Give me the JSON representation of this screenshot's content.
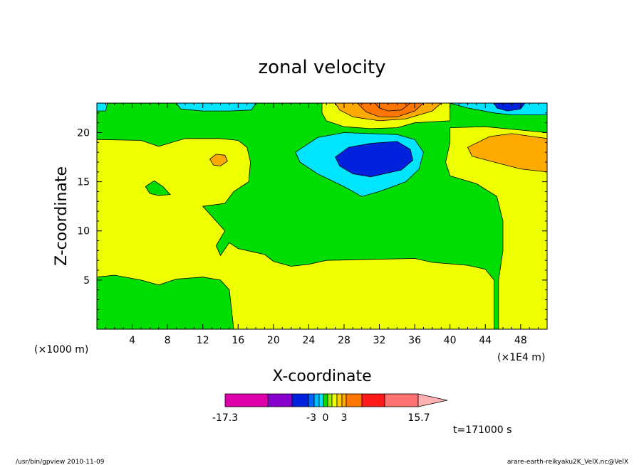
{
  "chart_data": {
    "type": "heatmap",
    "title": "zonal velocity",
    "xlabel": "X-coordinate",
    "ylabel": "Z-coordinate",
    "x_unit": "(×1000 m)",
    "x_multiplier": "(×1E4 m)",
    "xlim": [
      0,
      51
    ],
    "ylim": [
      0,
      23
    ],
    "x_ticks": [
      4,
      8,
      12,
      16,
      20,
      24,
      28,
      32,
      36,
      40,
      44,
      48
    ],
    "y_ticks": [
      5,
      10,
      15,
      20
    ],
    "regions": [
      {
        "level": "green",
        "color": "#00dd00",
        "points": [
          [
            0,
            0
          ],
          [
            51,
            0
          ],
          [
            51,
            23
          ],
          [
            0,
            23
          ]
        ]
      },
      {
        "level": "yellow",
        "color": "#eeff00",
        "points": [
          [
            0,
            19.3
          ],
          [
            5,
            19.2
          ],
          [
            7,
            18.6
          ],
          [
            10,
            19.4
          ],
          [
            14,
            19.4
          ],
          [
            16,
            19.2
          ],
          [
            17,
            18.5
          ],
          [
            17.4,
            17
          ],
          [
            17.2,
            15
          ],
          [
            15.5,
            14
          ],
          [
            14.5,
            12.8
          ],
          [
            12,
            12.5
          ],
          [
            13,
            11.5
          ],
          [
            14.5,
            10
          ],
          [
            13.5,
            8.5
          ],
          [
            14,
            7.5
          ],
          [
            15,
            8.8
          ],
          [
            16,
            8.2
          ],
          [
            18,
            7.8
          ],
          [
            19,
            7.6
          ],
          [
            20,
            6.9
          ],
          [
            22,
            6.4
          ],
          [
            24,
            6.6
          ],
          [
            26,
            7
          ],
          [
            31,
            7.1
          ],
          [
            36,
            7.2
          ],
          [
            38,
            6.8
          ],
          [
            42,
            6.5
          ],
          [
            44,
            6.1
          ],
          [
            45,
            5
          ],
          [
            45,
            0
          ],
          [
            15.5,
            0
          ],
          [
            15,
            4
          ],
          [
            14,
            5
          ],
          [
            12,
            5.3
          ],
          [
            9,
            5.1
          ],
          [
            7,
            4.5
          ],
          [
            5,
            5
          ],
          [
            2,
            5.5
          ],
          [
            0,
            5.3
          ]
        ]
      },
      {
        "level": "yellow",
        "color": "#eeff00",
        "points": [
          [
            40,
            20.5
          ],
          [
            44,
            20.6
          ],
          [
            51,
            20
          ],
          [
            51,
            0
          ],
          [
            45.5,
            0
          ],
          [
            45.5,
            5
          ],
          [
            46,
            8
          ],
          [
            46,
            11
          ],
          [
            45.3,
            13.5
          ],
          [
            43,
            14.8
          ],
          [
            40,
            15.6
          ],
          [
            39.5,
            17
          ],
          [
            40,
            19
          ]
        ]
      },
      {
        "level": "yellow",
        "color": "#eeff00",
        "points": [
          [
            25.5,
            23
          ],
          [
            40,
            23
          ],
          [
            40,
            21.2
          ],
          [
            36,
            21
          ],
          [
            34,
            20.5
          ],
          [
            31,
            20.4
          ],
          [
            28,
            20.6
          ],
          [
            26,
            21.2
          ],
          [
            25.5,
            22
          ]
        ]
      },
      {
        "level": "orange",
        "color": "#ffaa00",
        "points": [
          [
            27,
            23
          ],
          [
            39,
            23
          ],
          [
            38,
            22.2
          ],
          [
            35,
            21.4
          ],
          [
            32,
            21.2
          ],
          [
            29,
            21.6
          ],
          [
            27.5,
            22.3
          ]
        ]
      },
      {
        "level": "orange",
        "color": "#ffaa00",
        "points": [
          [
            42,
            18.5
          ],
          [
            44.5,
            19.6
          ],
          [
            47,
            19.9
          ],
          [
            51,
            19.4
          ],
          [
            51,
            16
          ],
          [
            48,
            16.3
          ],
          [
            45,
            17
          ],
          [
            42.5,
            17.6
          ]
        ]
      },
      {
        "level": "orange",
        "color": "#ffaa00",
        "points": [
          [
            12.8,
            17.3
          ],
          [
            13.5,
            17.8
          ],
          [
            14.5,
            17.7
          ],
          [
            14.8,
            17.1
          ],
          [
            14,
            16.6
          ],
          [
            13.2,
            16.7
          ]
        ]
      },
      {
        "level": "darkorange",
        "color": "#ff7700",
        "points": [
          [
            29.5,
            23
          ],
          [
            37,
            23
          ],
          [
            36,
            22.2
          ],
          [
            34,
            21.6
          ],
          [
            32,
            21.6
          ],
          [
            30.5,
            22.1
          ]
        ]
      },
      {
        "level": "darkorange",
        "color": "#ff7700",
        "points": [
          [
            31.5,
            23
          ],
          [
            35.5,
            23
          ],
          [
            34.5,
            22.3
          ],
          [
            33,
            22.2
          ],
          [
            32,
            22.5
          ]
        ]
      },
      {
        "level": "green",
        "color": "#00dd00",
        "points": [
          [
            5.5,
            14.5
          ],
          [
            6.5,
            15.1
          ],
          [
            7.5,
            14.5
          ],
          [
            8.3,
            13.7
          ],
          [
            7,
            13.6
          ],
          [
            6,
            13.8
          ]
        ]
      },
      {
        "level": "cyan",
        "color": "#00e5ff",
        "points": [
          [
            22.5,
            18
          ],
          [
            25,
            19.5
          ],
          [
            28,
            20
          ],
          [
            31,
            19.9
          ],
          [
            34,
            19.8
          ],
          [
            36,
            19.3
          ],
          [
            37,
            18
          ],
          [
            36.5,
            16.3
          ],
          [
            35,
            15
          ],
          [
            32,
            14
          ],
          [
            30,
            13.5
          ],
          [
            28,
            14.5
          ],
          [
            25,
            15.8
          ],
          [
            23,
            17
          ]
        ]
      },
      {
        "level": "cyan",
        "color": "#00e5ff",
        "points": [
          [
            0,
            23
          ],
          [
            1.2,
            23
          ],
          [
            1,
            22.2
          ],
          [
            0,
            22.2
          ]
        ]
      },
      {
        "level": "cyan",
        "color": "#00e5ff",
        "points": [
          [
            9,
            23
          ],
          [
            18,
            23
          ],
          [
            17.5,
            22.3
          ],
          [
            15,
            22.2
          ],
          [
            12,
            22.2
          ],
          [
            9.5,
            22.4
          ]
        ]
      },
      {
        "level": "cyan",
        "color": "#00e5ff",
        "points": [
          [
            40,
            23
          ],
          [
            51,
            23
          ],
          [
            51,
            21.8
          ],
          [
            47,
            21.8
          ],
          [
            45,
            22
          ],
          [
            42,
            22.5
          ]
        ]
      },
      {
        "level": "blue",
        "color": "#0022dd",
        "points": [
          [
            27,
            17.5
          ],
          [
            28.5,
            18.5
          ],
          [
            31,
            18.9
          ],
          [
            34,
            19.1
          ],
          [
            35.5,
            18.3
          ],
          [
            35.8,
            17.2
          ],
          [
            34.5,
            16.2
          ],
          [
            31,
            15.5
          ],
          [
            29,
            15.8
          ],
          [
            27.5,
            16.6
          ]
        ]
      },
      {
        "level": "blue",
        "color": "#0022dd",
        "points": [
          [
            45,
            23
          ],
          [
            48.5,
            23
          ],
          [
            48,
            22.4
          ],
          [
            46.5,
            22.2
          ],
          [
            45.3,
            22.5
          ]
        ]
      }
    ],
    "colorbar": {
      "min_label": "-17.3",
      "max_label": "15.7",
      "mid_labels": [
        "-3",
        "0",
        "3"
      ],
      "colors": [
        "#dd00aa",
        "#8800cc",
        "#0022dd",
        "#0066ff",
        "#00bbff",
        "#00e5ff",
        "#00dd00",
        "#99ee00",
        "#eeff00",
        "#ffd000",
        "#ffaa00",
        "#ff7700",
        "#ff1a1a",
        "#ff7070",
        "#ffb0b0"
      ]
    },
    "time_label": "t=171000 s"
  },
  "footer": {
    "left": "/usr/bin/gpview   2010-11-09",
    "right": "arare-earth-reikyaku2K_VelX.nc@VelX"
  }
}
